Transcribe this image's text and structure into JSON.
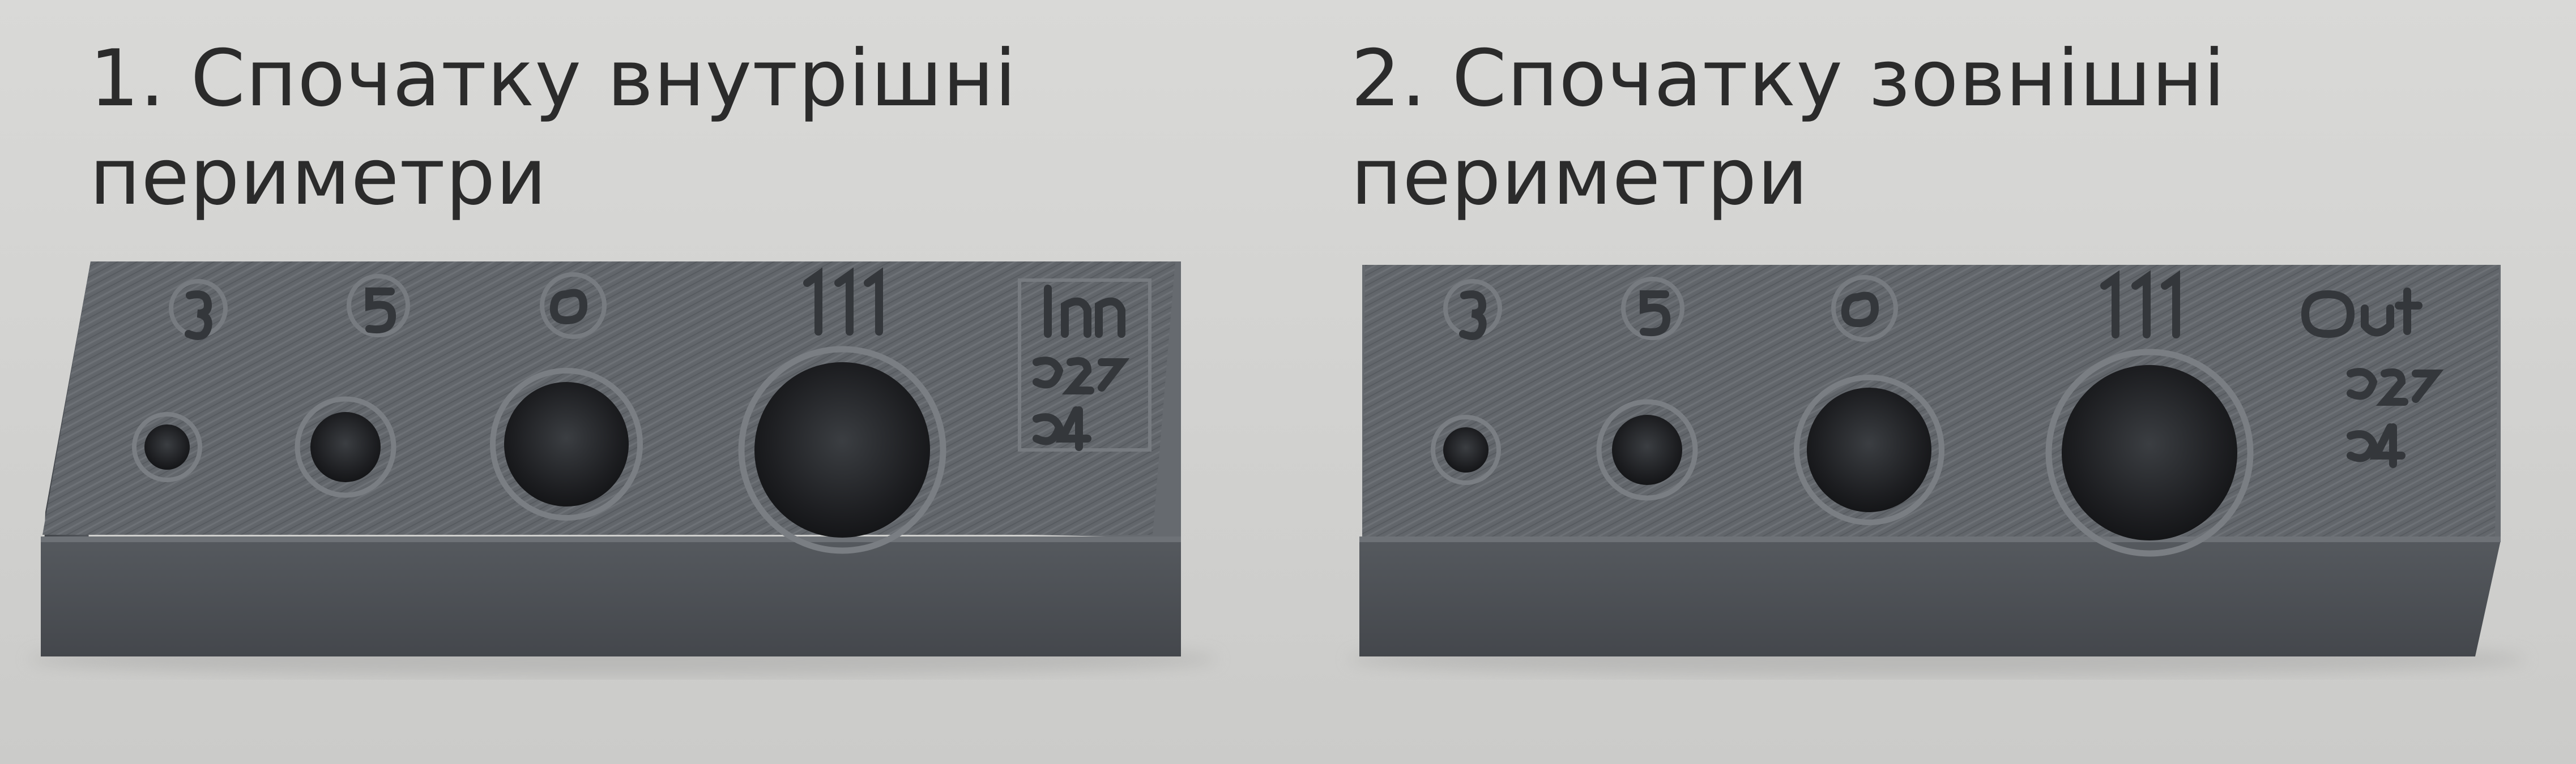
{
  "captions": [
    {
      "line1": "1. Спочатку внутрішні",
      "line2": "периметри"
    },
    {
      "line1": "2. Спочатку зовнішні",
      "line2": "периметри"
    }
  ],
  "blocks": [
    {
      "labels": [
        "In",
        "0.25",
        "0.4"
      ]
    },
    {
      "labels": [
        "Out",
        "0.25",
        "0.4"
      ]
    }
  ],
  "colors": {
    "background": "#d6d6d4",
    "filament_top": "#62666b",
    "filament_front": "#4c4f54",
    "text": "#2b2b2b"
  }
}
